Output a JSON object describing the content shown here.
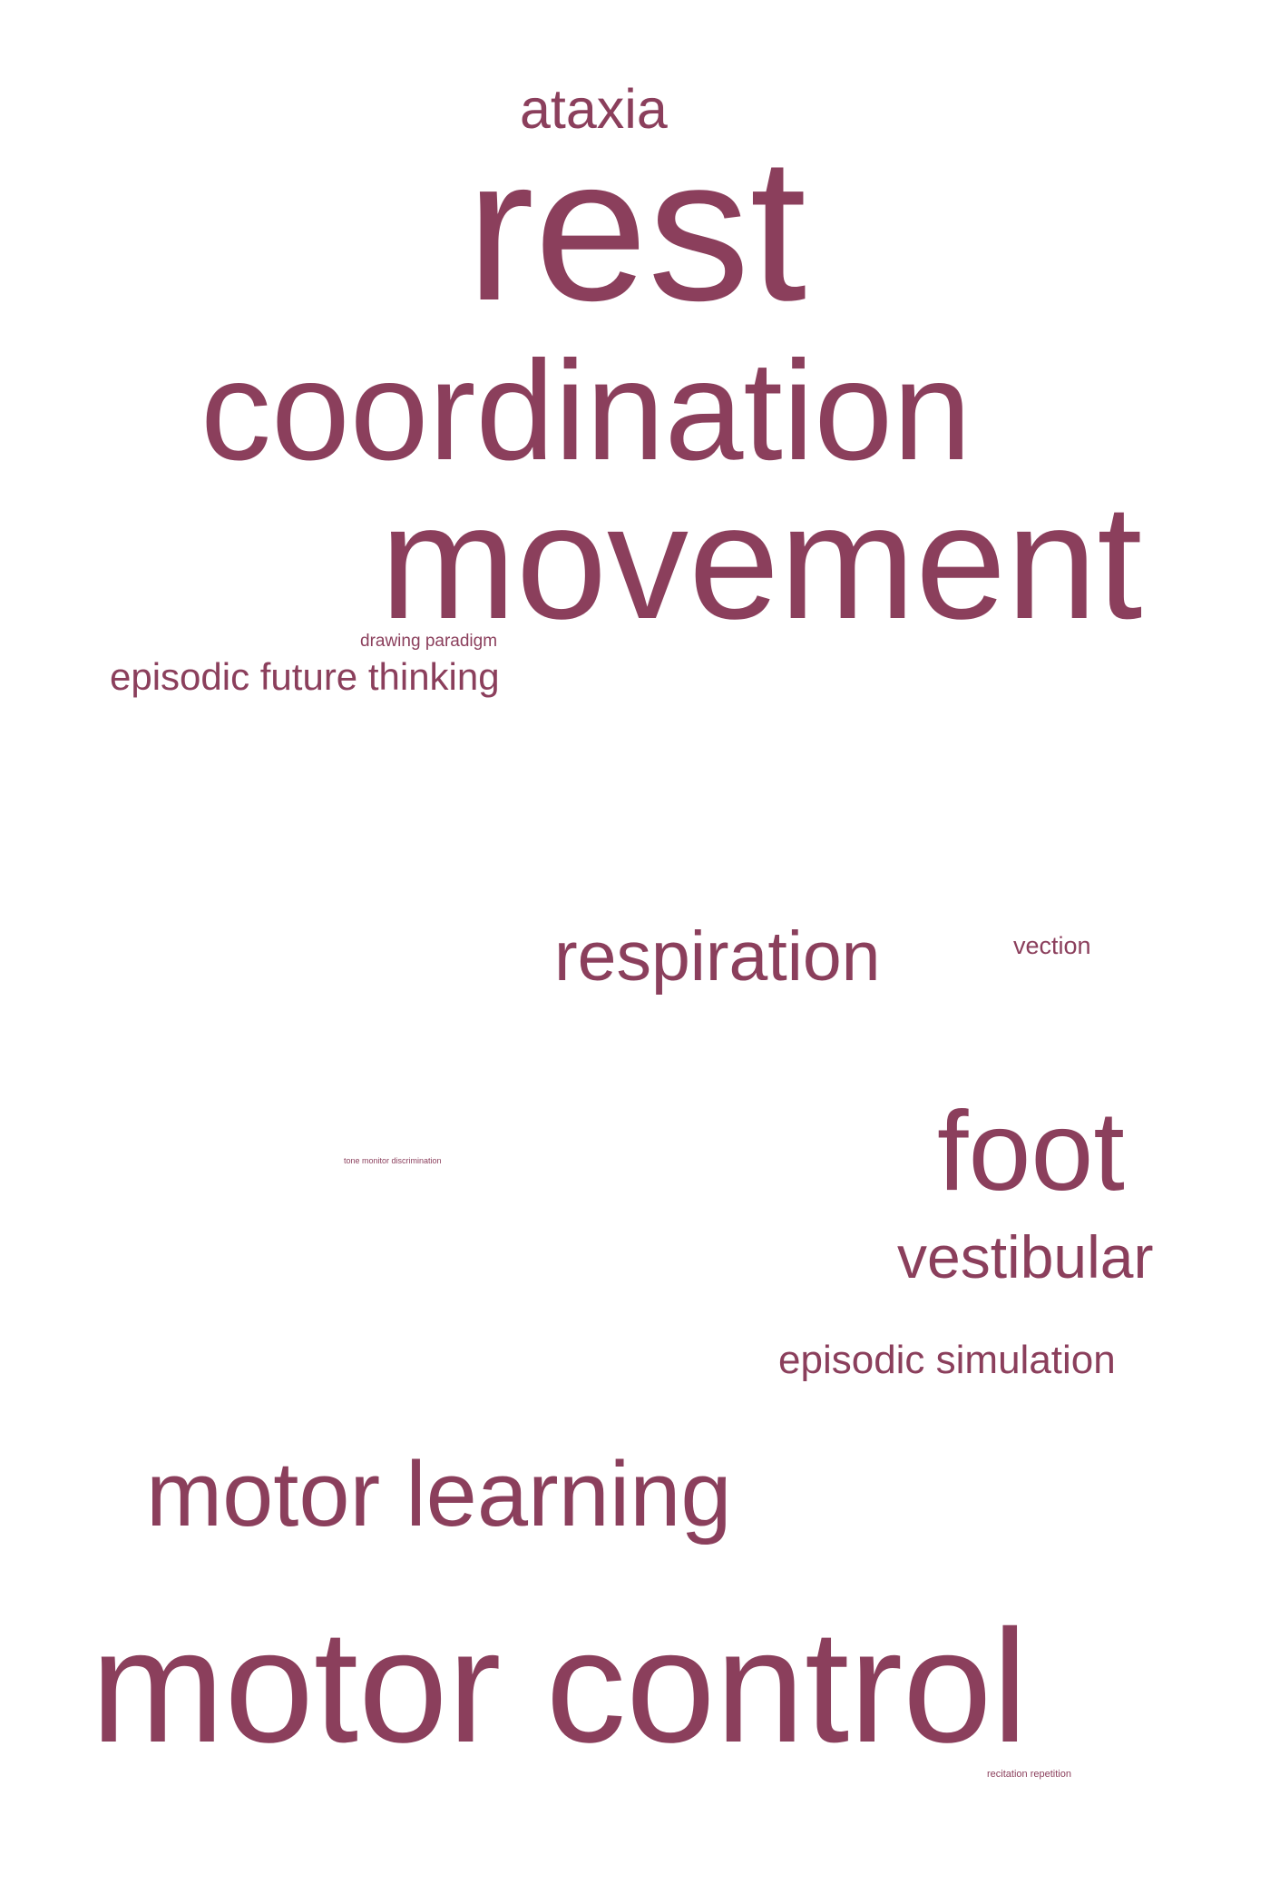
{
  "colors": {
    "background": "#ffffff",
    "word": "#8b3f5c"
  },
  "words": [
    "ataxia",
    "rest",
    "coordination",
    "movement",
    "drawing paradigm",
    "episodic future thinking",
    "respiration",
    "vection",
    "foot",
    "tone monitor discrimination",
    "vestibular",
    "episodic simulation",
    "motor learning",
    "motor control",
    "recitation repetition"
  ]
}
